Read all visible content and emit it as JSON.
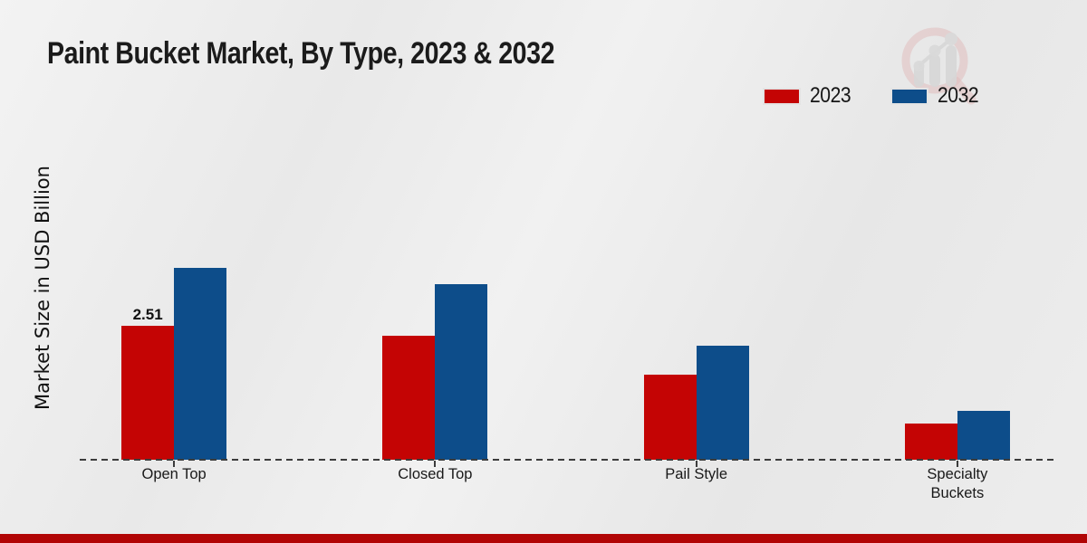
{
  "watermark_icon": "chart-magnifier-logo",
  "footer": {
    "stripe_color": "#b10505"
  },
  "chart_data": {
    "type": "bar",
    "title": "Paint Bucket Market, By Type, 2023 & 2032",
    "xlabel": "",
    "ylabel": "Market Size in USD Billion",
    "categories": [
      "Open Top",
      "Closed Top",
      "Pail Style",
      "Specialty Buckets"
    ],
    "series": [
      {
        "name": "2023",
        "color": "#c40404",
        "values": [
          2.51,
          2.32,
          1.6,
          0.68
        ]
      },
      {
        "name": "2032",
        "color": "#0d4d8a",
        "values": [
          3.6,
          3.29,
          2.14,
          0.92
        ]
      }
    ],
    "ylim": [
      0,
      4.5
    ],
    "grid": false,
    "legend_position": "top-right",
    "baseline_style": "dashed",
    "data_labels": [
      {
        "series": "2023",
        "category": "Open Top",
        "text": "2.51"
      }
    ]
  }
}
